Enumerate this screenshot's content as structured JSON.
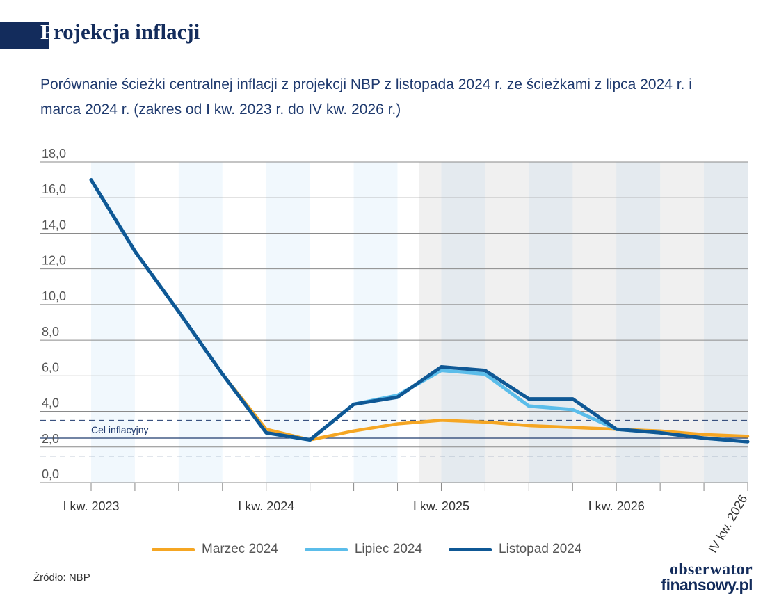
{
  "header": {
    "title_first": "P",
    "title_rest": "rojekcja inflacji",
    "subtitle": "Porównanie ścieżki centralnej inflacji z projekcji NBP z listopada 2024 r. ze ścieżkami z lipca 2024 r.  i marca 2024 r. (zakres od I kw. 2023 r. do IV kw. 2026 r.)"
  },
  "footer": {
    "source": "Źródło: NBP",
    "logo_line1": "obserwator",
    "logo_line2": "finansowy.pl"
  },
  "chart_data": {
    "type": "line",
    "ylim": [
      0,
      18
    ],
    "yticks": [
      "0,0",
      "2,0",
      "4,0",
      "6,0",
      "8,0",
      "10,0",
      "12,0",
      "14,0",
      "16,0",
      "18,0"
    ],
    "x_tick_labels": [
      {
        "index": 0,
        "label": "I kw. 2023"
      },
      {
        "index": 4,
        "label": "I kw. 2024"
      },
      {
        "index": 8,
        "label": "I kw. 2025"
      },
      {
        "index": 12,
        "label": "I kw. 2026"
      },
      {
        "index": 15,
        "label": "IV kw. 2026",
        "rotated": true
      }
    ],
    "n_points": 16,
    "projection_start_index": 7,
    "target": {
      "label": "Cel inflacyjny",
      "value": 2.5,
      "band": [
        1.5,
        3.5
      ]
    },
    "series": [
      {
        "name": "Marzec 2024",
        "color": "#f5a623",
        "values": [
          17.0,
          13.0,
          9.6,
          6.1,
          3.0,
          2.4,
          2.9,
          3.3,
          3.5,
          3.4,
          3.2,
          3.1,
          3.0,
          2.9,
          2.7,
          2.6
        ]
      },
      {
        "name": "Lipiec 2024",
        "color": "#5bbdea",
        "values": [
          17.0,
          13.0,
          9.6,
          6.1,
          2.8,
          2.4,
          4.4,
          4.9,
          6.3,
          6.1,
          4.3,
          4.1,
          3.0,
          2.8,
          2.5,
          2.3
        ]
      },
      {
        "name": "Listopad 2024",
        "color": "#0f5895",
        "values": [
          17.0,
          13.0,
          9.6,
          6.1,
          2.8,
          2.4,
          4.4,
          4.8,
          6.5,
          6.3,
          4.7,
          4.7,
          3.0,
          2.8,
          2.5,
          2.3
        ]
      }
    ]
  }
}
